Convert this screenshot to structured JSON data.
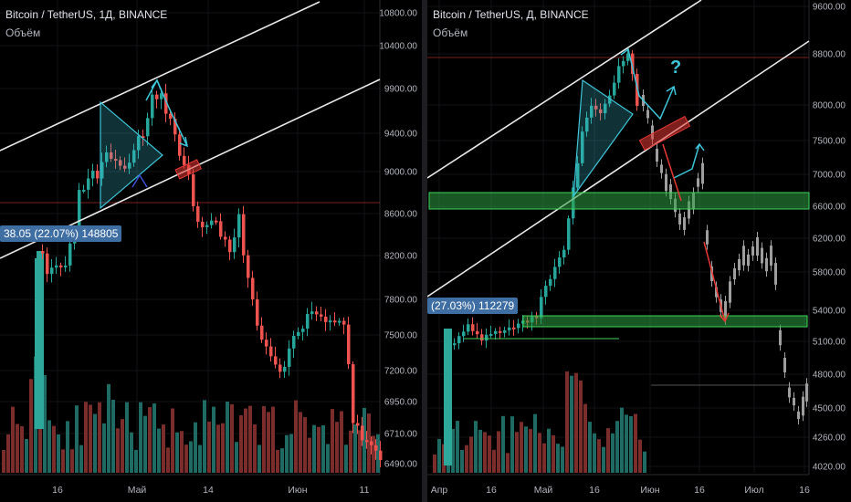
{
  "chart_data": [
    {
      "type": "candlestick",
      "title": "Bitcoin / TetherUS, 1Д, BINANCE",
      "indicator": "Объём",
      "yticks": [
        10800,
        10400,
        9900,
        9400,
        9000,
        8600,
        8200,
        7800,
        7500,
        7200,
        6950,
        6710,
        6490
      ],
      "ytick_labels": [
        "10800.00",
        "10400.00",
        "9900.00",
        "9400.00",
        "9000.00",
        "8600.00",
        "8200.00",
        "7800.00",
        "7500.00",
        "7200.00",
        "6950.00",
        "6710.00",
        "6490.00"
      ],
      "xtick_labels": [
        "16",
        "Май",
        "14",
        "Июн",
        "11"
      ],
      "tag": "38.05 (22.07%) 148805",
      "colors": {
        "up": "#26a69a",
        "down": "#ef5350",
        "up_vol": "#1f6b64",
        "down_vol": "#7a2d2b",
        "tag": "#3f6ea3"
      }
    },
    {
      "type": "candlestick",
      "title": "Bitcoin / TetherUS, Д, BINANCE",
      "indicator": "Объём",
      "yticks": [
        9600,
        8800,
        8000,
        7500,
        7000,
        6600,
        6200,
        5800,
        5400,
        5100,
        4800,
        4500,
        4260,
        4020
      ],
      "ytick_labels": [
        "9600.00",
        "8800.00",
        "8000.00",
        "7500.00",
        "7000.00",
        "6600.00",
        "6200.00",
        "5800.00",
        "5400.00",
        "5100.00",
        "4800.00",
        "4500.00",
        "4260.00",
        "4020.00"
      ],
      "xtick_labels": [
        "Апр",
        "16",
        "Май",
        "16",
        "Июн",
        "16",
        "Июл",
        "16"
      ],
      "tag": "(27.03%) 112279",
      "annotation": "?",
      "colors": {
        "up": "#26a69a",
        "down": "#ef5350",
        "projection": "#9e9e9e",
        "zone": "#2ea043",
        "arrow_cyan": "#3ec5d8",
        "arrow_red": "#e53935"
      }
    }
  ]
}
